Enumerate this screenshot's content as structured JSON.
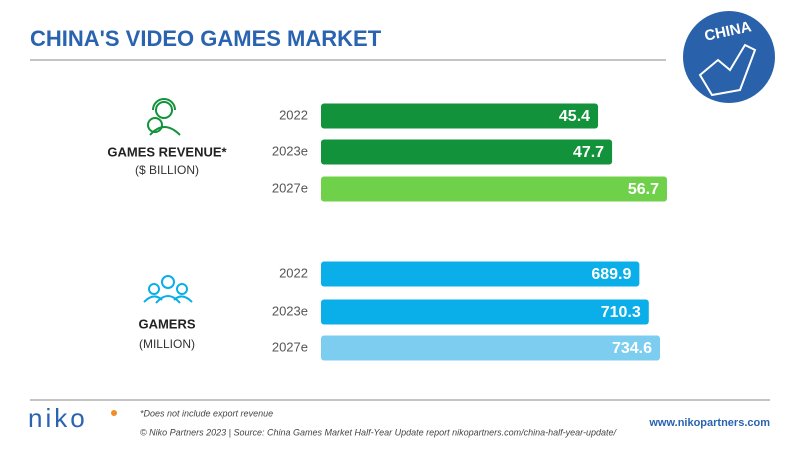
{
  "header": {
    "title": "CHINA'S VIDEO GAMES MARKET",
    "badge": "CHINA"
  },
  "chart_data": [
    {
      "type": "bar",
      "orientation": "horizontal",
      "label": "GAMES REVENUE*",
      "unit": "($ BILLION)",
      "categories": [
        "2022",
        "2023e",
        "2027e"
      ],
      "values": [
        45.4,
        47.7,
        56.7
      ],
      "colors": [
        "#12923a",
        "#12923a",
        "#6fd14a"
      ]
    },
    {
      "type": "bar",
      "orientation": "horizontal",
      "label": "GAMERS",
      "unit": "(MILLION)",
      "categories": [
        "2022",
        "2023e",
        "2027e"
      ],
      "values": [
        689.9,
        710.3,
        734.6
      ],
      "colors": [
        "#0aaee8",
        "#0aaee8",
        "#7ccdf0"
      ]
    }
  ],
  "footer": {
    "logo": "niko",
    "note": "*Does not include export revenue",
    "source": "© Niko Partners 2023 | Source: China Games Market Half-Year Update report nikopartners.com/china-half-year-update/",
    "website": "www.nikopartners.com"
  }
}
